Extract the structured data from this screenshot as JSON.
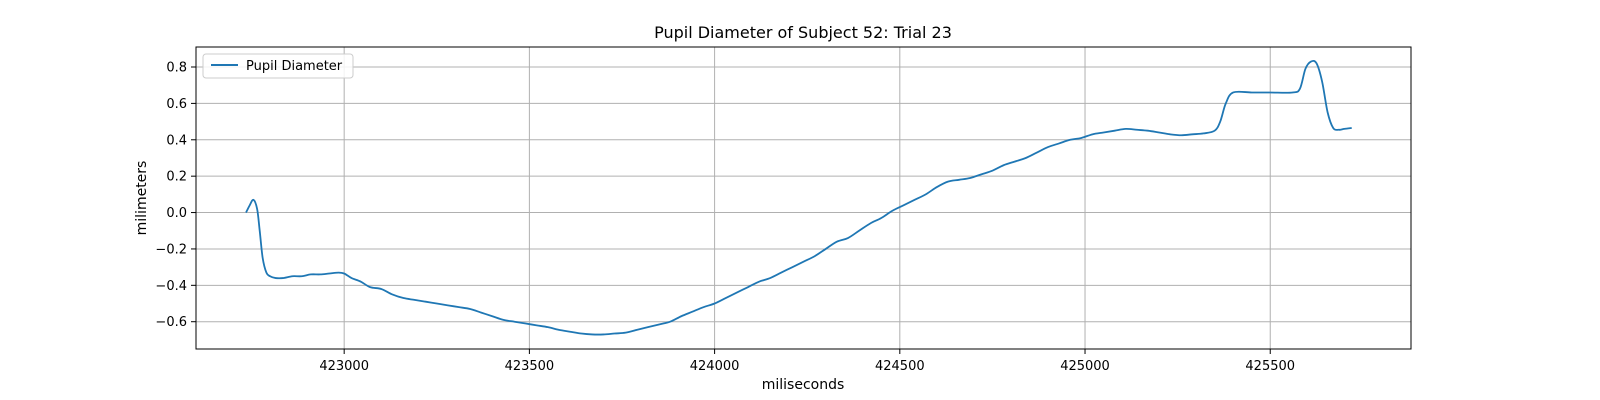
{
  "chart_data": {
    "type": "line",
    "title": "Pupil Diameter of Subject 52: Trial 23",
    "xlabel": "miliseconds",
    "ylabel": "milimeters",
    "xlim": [
      422600,
      425880
    ],
    "ylim": [
      -0.75,
      0.91
    ],
    "xticks": [
      423000,
      423500,
      424000,
      424500,
      425000,
      425500
    ],
    "xtick_labels": [
      "423000",
      "423500",
      "424000",
      "424500",
      "425000",
      "425500"
    ],
    "yticks": [
      -0.6,
      -0.4,
      -0.2,
      0.0,
      0.2,
      0.4,
      0.6,
      0.8
    ],
    "ytick_labels": [
      "−0.6",
      "−0.4",
      "−0.2",
      "0.0",
      "0.2",
      "0.4",
      "0.6",
      "0.8"
    ],
    "grid": true,
    "legend_position": "top-left",
    "color": "#1f77b4",
    "series": [
      {
        "name": "Pupil Diameter",
        "x": [
          422735,
          422745,
          422755,
          422765,
          422772,
          422780,
          422790,
          422800,
          422815,
          422835,
          422860,
          422885,
          422910,
          422935,
          422960,
          422985,
          423000,
          423020,
          423045,
          423070,
          423100,
          423130,
          423160,
          423190,
          423220,
          423250,
          423280,
          423310,
          423340,
          423370,
          423400,
          423430,
          423460,
          423490,
          423520,
          423550,
          423580,
          423610,
          423640,
          423670,
          423700,
          423730,
          423760,
          423790,
          423820,
          423850,
          423880,
          423910,
          423940,
          423970,
          424000,
          424030,
          424060,
          424090,
          424120,
          424150,
          424180,
          424210,
          424240,
          424270,
          424300,
          424330,
          424360,
          424390,
          424420,
          424450,
          424480,
          424510,
          424540,
          424570,
          424600,
          424630,
          424660,
          424690,
          424720,
          424750,
          424780,
          424810,
          424840,
          424870,
          424900,
          424930,
          424960,
          424990,
          425020,
          425050,
          425080,
          425110,
          425140,
          425170,
          425200,
          425230,
          425260,
          425290,
          425320,
          425350,
          425365,
          425380,
          425400,
          425450,
          425500,
          425560,
          425580,
          425595,
          425610,
          425625,
          425640,
          425655,
          425670,
          425685,
          425700,
          425720
        ],
        "values": [
          0.0,
          0.04,
          0.07,
          0.02,
          -0.1,
          -0.25,
          -0.33,
          -0.35,
          -0.36,
          -0.36,
          -0.35,
          -0.35,
          -0.34,
          -0.34,
          -0.335,
          -0.33,
          -0.335,
          -0.36,
          -0.38,
          -0.41,
          -0.42,
          -0.45,
          -0.47,
          -0.48,
          -0.49,
          -0.5,
          -0.51,
          -0.52,
          -0.53,
          -0.55,
          -0.57,
          -0.59,
          -0.6,
          -0.61,
          -0.62,
          -0.63,
          -0.645,
          -0.655,
          -0.665,
          -0.67,
          -0.67,
          -0.665,
          -0.66,
          -0.645,
          -0.63,
          -0.615,
          -0.6,
          -0.57,
          -0.545,
          -0.52,
          -0.5,
          -0.47,
          -0.44,
          -0.41,
          -0.38,
          -0.36,
          -0.33,
          -0.3,
          -0.27,
          -0.24,
          -0.2,
          -0.16,
          -0.14,
          -0.1,
          -0.06,
          -0.03,
          0.01,
          0.04,
          0.07,
          0.1,
          0.14,
          0.17,
          0.18,
          0.19,
          0.21,
          0.23,
          0.26,
          0.28,
          0.3,
          0.33,
          0.36,
          0.38,
          0.4,
          0.41,
          0.43,
          0.44,
          0.45,
          0.46,
          0.455,
          0.45,
          0.44,
          0.43,
          0.425,
          0.43,
          0.435,
          0.45,
          0.5,
          0.6,
          0.66,
          0.66,
          0.66,
          0.66,
          0.68,
          0.79,
          0.83,
          0.82,
          0.72,
          0.55,
          0.465,
          0.455,
          0.46,
          0.465
        ]
      }
    ]
  }
}
